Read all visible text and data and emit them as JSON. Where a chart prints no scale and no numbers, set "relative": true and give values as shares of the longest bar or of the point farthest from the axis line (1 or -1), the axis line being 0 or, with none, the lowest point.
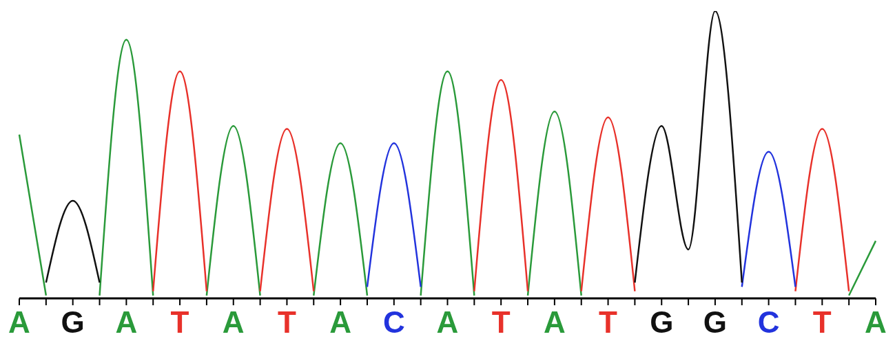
{
  "chart_data": {
    "type": "line",
    "relative": true,
    "marker": "none",
    "grid": false,
    "legend": false,
    "line_style": "solid",
    "categories": [
      "A",
      null,
      "G",
      null,
      "A",
      null,
      "T",
      null,
      "A",
      null,
      "T",
      null,
      "A",
      null,
      "C",
      null,
      "A",
      null,
      "T",
      null,
      "A",
      null,
      "T",
      null,
      "G",
      null,
      "G",
      null,
      "C",
      null,
      "T",
      null,
      "A"
    ],
    "series": [
      {
        "color": "#2a9a3a",
        "values": [
          0.57,
          0.01,
          null,
          0.01,
          0.9,
          0.01,
          null,
          0.01,
          0.6,
          0.01,
          null,
          0.01,
          0.54,
          0.01,
          null,
          0.01,
          0.79,
          0.01,
          null,
          0.01,
          0.65,
          0.01,
          null,
          null,
          null,
          null,
          null,
          null,
          null,
          null,
          null,
          0.01,
          0.2
        ]
      },
      {
        "color": "#e8312a",
        "values": [
          null,
          null,
          null,
          null,
          null,
          0.025,
          0.79,
          0.025,
          null,
          0.025,
          0.59,
          0.025,
          null,
          null,
          null,
          null,
          null,
          0.025,
          0.76,
          0.025,
          null,
          0.025,
          0.63,
          0.025,
          null,
          null,
          null,
          null,
          null,
          0.025,
          0.59,
          0.025,
          null
        ]
      },
      {
        "color": "#2233dd",
        "values": [
          null,
          null,
          null,
          null,
          null,
          null,
          null,
          null,
          null,
          null,
          null,
          null,
          null,
          0.04,
          0.54,
          0.04,
          null,
          null,
          null,
          null,
          null,
          null,
          null,
          null,
          null,
          null,
          null,
          0.04,
          0.51,
          0.04,
          null,
          null,
          null
        ]
      },
      {
        "color": "#111111",
        "values": [
          null,
          0.055,
          0.34,
          0.055,
          null,
          null,
          null,
          null,
          null,
          null,
          null,
          null,
          null,
          null,
          null,
          null,
          null,
          null,
          null,
          null,
          null,
          null,
          null,
          0.055,
          0.6,
          0.17,
          1,
          0.055,
          null,
          null,
          null,
          null,
          null
        ]
      }
    ]
  }
}
